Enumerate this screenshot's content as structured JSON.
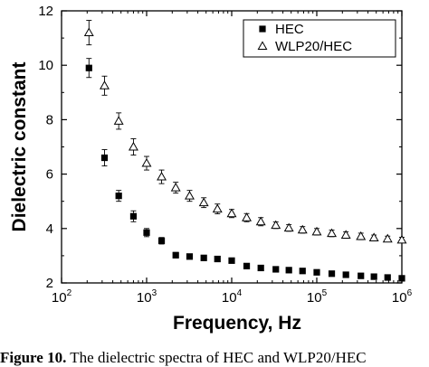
{
  "chart_data": {
    "type": "scatter",
    "xlabel": "Frequency, Hz",
    "ylabel": "Dielectric constant",
    "xscale": "log",
    "xlim": [
      100,
      1000000
    ],
    "ylim": [
      2,
      12
    ],
    "yticks": [
      2,
      4,
      6,
      8,
      10,
      12
    ],
    "xticks": [
      {
        "value": 100,
        "base": "10",
        "exp": "2"
      },
      {
        "value": 1000,
        "base": "10",
        "exp": "3"
      },
      {
        "value": 10000,
        "base": "10",
        "exp": "4"
      },
      {
        "value": 100000,
        "base": "10",
        "exp": "5"
      },
      {
        "value": 1000000,
        "base": "10",
        "exp": "6"
      }
    ],
    "legend_position": "top-right",
    "x": [
      210,
      320,
      470,
      700,
      1000,
      1500,
      2200,
      3200,
      4700,
      6800,
      10000,
      15000,
      22000,
      33000,
      47000,
      68000,
      100000,
      150000,
      220000,
      330000,
      470000,
      680000,
      1000000
    ],
    "series": [
      {
        "name": "HEC",
        "marker": "filled-square",
        "color": "#000000",
        "values": [
          9.9,
          6.6,
          5.2,
          4.45,
          3.85,
          3.55,
          3.02,
          2.97,
          2.92,
          2.88,
          2.82,
          2.62,
          2.55,
          2.5,
          2.47,
          2.44,
          2.39,
          2.34,
          2.3,
          2.26,
          2.23,
          2.2,
          2.17
        ],
        "errors": [
          0.35,
          0.3,
          0.2,
          0.2,
          0.15,
          0.12,
          0.1,
          0.08,
          0.08,
          0.08,
          0.08,
          0.06,
          0.05,
          0.05,
          0.05,
          0.05,
          0.05,
          0.05,
          0.05,
          0.05,
          0.05,
          0.05,
          0.05
        ]
      },
      {
        "name": "WLP20/HEC",
        "marker": "open-triangle",
        "color": "#000000",
        "values": [
          11.2,
          9.25,
          7.95,
          7.0,
          6.4,
          5.9,
          5.5,
          5.2,
          4.95,
          4.72,
          4.55,
          4.4,
          4.25,
          4.12,
          4.02,
          3.95,
          3.88,
          3.82,
          3.76,
          3.71,
          3.66,
          3.62,
          3.58
        ],
        "errors": [
          0.45,
          0.35,
          0.3,
          0.3,
          0.25,
          0.25,
          0.2,
          0.2,
          0.18,
          0.18,
          0.15,
          0.15,
          0.15,
          0.12,
          0.12,
          0.12,
          0.12,
          0.12,
          0.12,
          0.12,
          0.1,
          0.1,
          0.1
        ]
      }
    ]
  },
  "caption": {
    "prefix": "Figure 10.",
    "text": " The dielectric spectra of HEC and WLP20/HEC"
  }
}
